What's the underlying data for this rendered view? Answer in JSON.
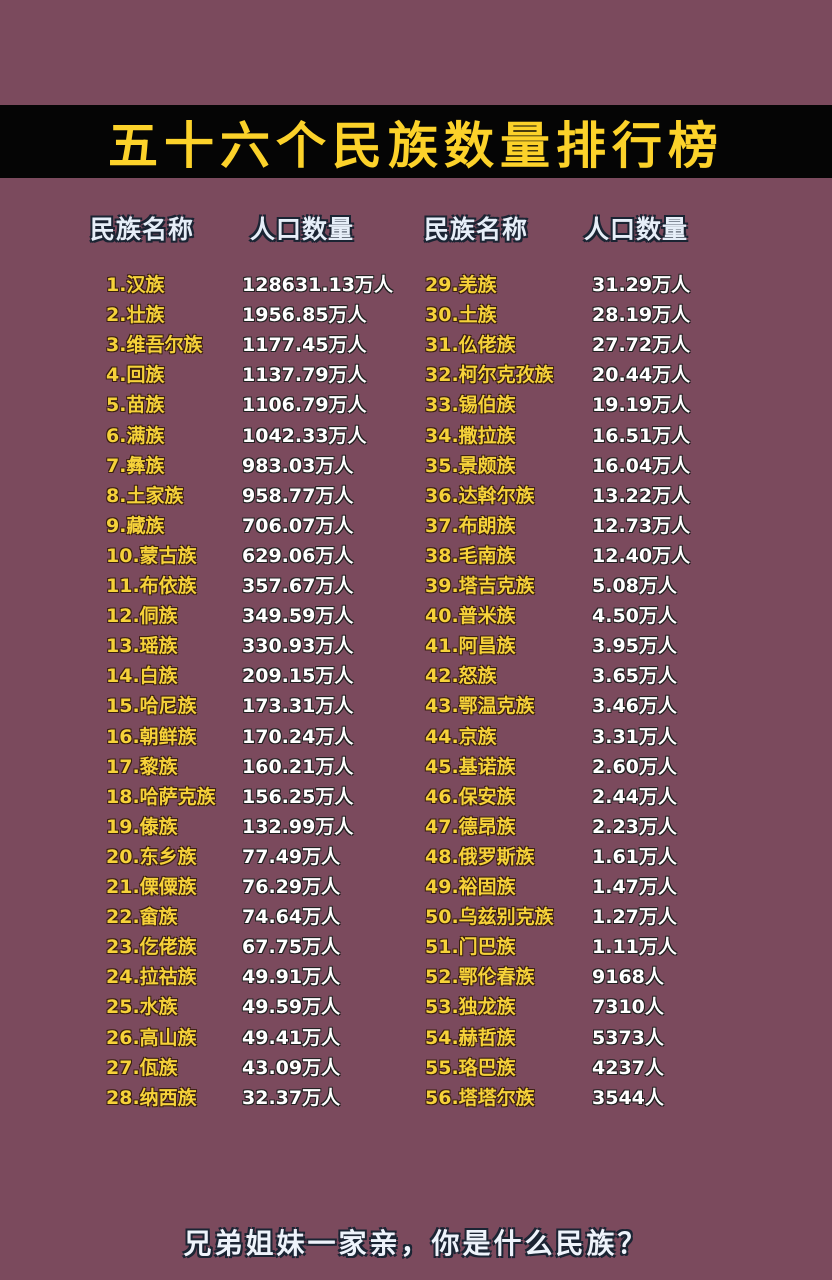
{
  "title": "五十六个民族数量排行榜",
  "headers": {
    "name": "民族名称",
    "population": "人口数量"
  },
  "colors": {
    "background": "#7b4a5d",
    "banner": "#050505",
    "title": "#fcd22a",
    "name_text": "#f6d23a",
    "population_text": "#ffffff"
  },
  "ranking": [
    {
      "name": "1.汉族",
      "population": "128631.13万人"
    },
    {
      "name": "2.壮族",
      "population": "1956.85万人"
    },
    {
      "name": "3.维吾尔族",
      "population": "1177.45万人"
    },
    {
      "name": "4.回族",
      "population": "1137.79万人"
    },
    {
      "name": "5.苗族",
      "population": "1106.79万人"
    },
    {
      "name": "6.满族",
      "population": "1042.33万人"
    },
    {
      "name": "7.彝族",
      "population": "983.03万人"
    },
    {
      "name": "8.土家族",
      "population": "958.77万人"
    },
    {
      "name": "9.藏族",
      "population": "706.07万人"
    },
    {
      "name": "10.蒙古族",
      "population": "629.06万人"
    },
    {
      "name": "11.布依族",
      "population": "357.67万人"
    },
    {
      "name": "12.侗族",
      "population": "349.59万人"
    },
    {
      "name": "13.瑶族",
      "population": "330.93万人"
    },
    {
      "name": "14.白族",
      "population": "209.15万人"
    },
    {
      "name": "15.哈尼族",
      "population": "173.31万人"
    },
    {
      "name": "16.朝鲜族",
      "population": "170.24万人"
    },
    {
      "name": "17.黎族",
      "population": "160.21万人"
    },
    {
      "name": "18.哈萨克族",
      "population": "156.25万人"
    },
    {
      "name": "19.傣族",
      "population": "132.99万人"
    },
    {
      "name": "20.东乡族",
      "population": "77.49万人"
    },
    {
      "name": "21.傈僳族",
      "population": "76.29万人"
    },
    {
      "name": "22.畲族",
      "population": "74.64万人"
    },
    {
      "name": "23.仡佬族",
      "population": "67.75万人"
    },
    {
      "name": "24.拉祜族",
      "population": "49.91万人"
    },
    {
      "name": "25.水族",
      "population": "49.59万人"
    },
    {
      "name": "26.高山族",
      "population": "49.41万人"
    },
    {
      "name": "27.佤族",
      "population": "43.09万人"
    },
    {
      "name": "28.纳西族",
      "population": "32.37万人"
    },
    {
      "name": "29.羌族",
      "population": "31.29万人"
    },
    {
      "name": "30.土族",
      "population": "28.19万人"
    },
    {
      "name": "31.仫佬族",
      "population": "27.72万人"
    },
    {
      "name": "32.柯尔克孜族",
      "population": "20.44万人"
    },
    {
      "name": "33.锡伯族",
      "population": "19.19万人"
    },
    {
      "name": "34.撒拉族",
      "population": "16.51万人"
    },
    {
      "name": "35.景颇族",
      "population": "16.04万人"
    },
    {
      "name": "36.达斡尔族",
      "population": "13.22万人"
    },
    {
      "name": "37.布朗族",
      "population": "12.73万人"
    },
    {
      "name": "38.毛南族",
      "population": "12.40万人"
    },
    {
      "name": "39.塔吉克族",
      "population": "5.08万人"
    },
    {
      "name": "40.普米族",
      "population": "4.50万人"
    },
    {
      "name": "41.阿昌族",
      "population": "3.95万人"
    },
    {
      "name": "42.怒族",
      "population": "3.65万人"
    },
    {
      "name": "43.鄂温克族",
      "population": "3.46万人"
    },
    {
      "name": "44.京族",
      "population": "3.31万人"
    },
    {
      "name": "45.基诺族",
      "population": "2.60万人"
    },
    {
      "name": "46.保安族",
      "population": "2.44万人"
    },
    {
      "name": "47.德昂族",
      "population": "2.23万人"
    },
    {
      "name": "48.俄罗斯族",
      "population": "1.61万人"
    },
    {
      "name": "49.裕固族",
      "population": "1.47万人"
    },
    {
      "name": "50.乌兹别克族",
      "population": "1.27万人"
    },
    {
      "name": "51.门巴族",
      "population": "1.11万人"
    },
    {
      "name": "52.鄂伦春族",
      "population": "9168人"
    },
    {
      "name": "53.独龙族",
      "population": "7310人"
    },
    {
      "name": "54.赫哲族",
      "population": "5373人"
    },
    {
      "name": "55.珞巴族",
      "population": "4237人"
    },
    {
      "name": "56.塔塔尔族",
      "population": "3544人"
    }
  ],
  "footer": "兄弟姐妹一家亲，你是什么民族？"
}
